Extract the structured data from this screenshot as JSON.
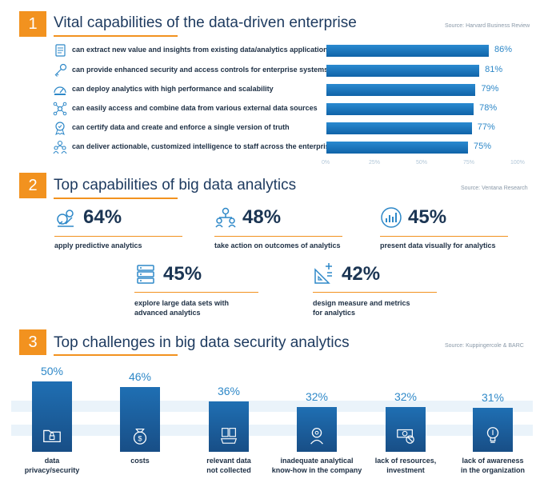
{
  "sections": [
    {
      "number": "1",
      "title": "Vital capabilities of the data-driven enterprise",
      "source": "Source: Harvard Business Review"
    },
    {
      "number": "2",
      "title": "Top capabilities of big data analytics",
      "source": "Source: Ventana Research"
    },
    {
      "number": "3",
      "title": "Top challenges in big data security analytics",
      "source": "Source: Kuppingercole & BARC"
    }
  ],
  "chart_data": [
    {
      "type": "bar",
      "orientation": "horizontal",
      "title": "Vital capabilities of the data-driven enterprise",
      "categories": [
        "can extract new value and insights from existing data/analytics applications",
        "can provide enhanced security and access controls for enterprise systems",
        "can deploy analytics with high performance and scalability",
        "can easily access and combine data from various external data sources",
        "can certify data and create and enforce a single version of truth",
        "can deliver actionable, customized intelligence to staff across the enterprise"
      ],
      "values": [
        86,
        81,
        79,
        78,
        77,
        75
      ],
      "value_labels": [
        "86%",
        "81%",
        "79%",
        "78%",
        "77%",
        "75%"
      ],
      "icons": [
        "document-icon",
        "key-icon",
        "speed-icon",
        "network-icon",
        "certificate-icon",
        "people-icon"
      ],
      "xlim": [
        0,
        100
      ],
      "xticks": [
        "0%",
        "25%",
        "50%",
        "75%",
        "100%"
      ]
    },
    {
      "type": "table",
      "title": "Top capabilities of big data analytics",
      "items": [
        {
          "value": 64,
          "value_label": "64%",
          "label": "apply predictive analytics",
          "icon": "predictive-icon"
        },
        {
          "value": 48,
          "value_label": "48%",
          "label": "take action on outcomes of analytics",
          "icon": "team-icon"
        },
        {
          "value": 45,
          "value_label": "45%",
          "label": "present data visually for analytics",
          "icon": "chart-icon"
        },
        {
          "value": 45,
          "value_label": "45%",
          "label_lines": [
            "explore large data sets with",
            "advanced analytics"
          ],
          "icon": "database-icon"
        },
        {
          "value": 42,
          "value_label": "42%",
          "label_lines": [
            "design measure and metrics",
            "for analytics"
          ],
          "icon": "ruler-icon"
        }
      ]
    },
    {
      "type": "bar",
      "orientation": "vertical",
      "title": "Top challenges in big data security analytics",
      "ylim": [
        0,
        50
      ],
      "categories": [
        {
          "lines": [
            "data",
            "privacy/security"
          ],
          "icon": "folder-lock-icon"
        },
        {
          "lines": [
            "costs"
          ],
          "icon": "money-icon"
        },
        {
          "lines": [
            "relevant data",
            "not collected"
          ],
          "icon": "files-icon"
        },
        {
          "lines": [
            "inadequate analytical",
            "know-how in the company"
          ],
          "icon": "thinker-icon"
        },
        {
          "lines": [
            "lack of resources,",
            "investment"
          ],
          "icon": "cash-icon"
        },
        {
          "lines": [
            "lack of awareness",
            "in the organization"
          ],
          "icon": "bulb-icon"
        }
      ],
      "values": [
        50,
        46,
        36,
        32,
        32,
        31
      ],
      "value_labels": [
        "50%",
        "46%",
        "36%",
        "32%",
        "32%",
        "31%"
      ]
    }
  ],
  "colors": {
    "accent": "#f2921f",
    "bar": "#1b6fb8",
    "value": "#2e88c8",
    "text": "#1d2f44"
  }
}
